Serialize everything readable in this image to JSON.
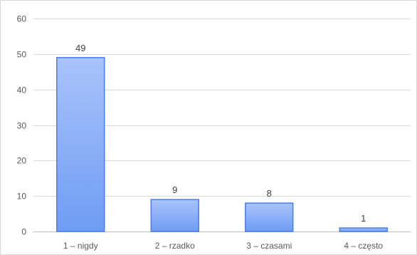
{
  "chart_data": {
    "type": "bar",
    "title": "",
    "xlabel": "",
    "ylabel": "",
    "categories": [
      "1 – nigdy",
      "2 – rzadko",
      "3 – czasami",
      "4 – często"
    ],
    "values": [
      49,
      9,
      8,
      1
    ],
    "data_labels": [
      "49",
      "9",
      "8",
      "1"
    ],
    "ylim": [
      0,
      60
    ],
    "yticks": [
      0,
      10,
      20,
      30,
      40,
      50,
      60
    ],
    "ytick_labels": [
      "0",
      "10",
      "20",
      "30",
      "40",
      "50",
      "60"
    ],
    "grid": true,
    "legend": "none",
    "colors": {
      "bar_top": "#a9c3fa",
      "bar_bottom": "#6f9cf4",
      "bar_border": "#4a7de8",
      "grid": "#d9d9d9",
      "text": "#595959"
    }
  }
}
